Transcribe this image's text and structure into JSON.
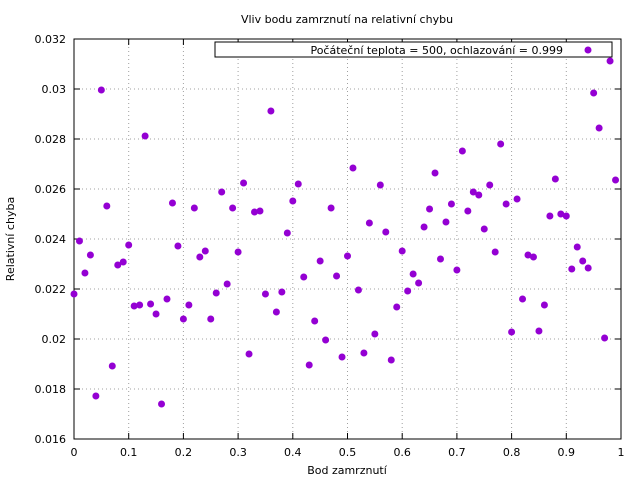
{
  "chart_data": {
    "type": "scatter",
    "title": "Vliv bodu zamrznutí na relativní chybu",
    "xlabel": "Bod zamrznutí",
    "ylabel": "Relativní chyba",
    "xlim": [
      0,
      1
    ],
    "ylim": [
      0.016,
      0.032
    ],
    "x_ticks": [
      "0",
      "0.1",
      "0.2",
      "0.3",
      "0.4",
      "0.5",
      "0.6",
      "0.7",
      "0.8",
      "0.9",
      "1"
    ],
    "y_ticks": [
      "0.016",
      "0.018",
      "0.02",
      "0.022",
      "0.024",
      "0.026",
      "0.028",
      "0.03",
      "0.032"
    ],
    "grid": true,
    "legend_position": "top-right",
    "marker_color": "#9400d3",
    "series": [
      {
        "name": "Počáteční teplota = 500, ochlazování = 0.999",
        "x": [
          0.0,
          0.01,
          0.02,
          0.03,
          0.04,
          0.05,
          0.06,
          0.07,
          0.08,
          0.09,
          0.1,
          0.11,
          0.12,
          0.13,
          0.14,
          0.15,
          0.16,
          0.17,
          0.18,
          0.19,
          0.2,
          0.21,
          0.22,
          0.23,
          0.24,
          0.25,
          0.26,
          0.27,
          0.28,
          0.29,
          0.3,
          0.31,
          0.32,
          0.33,
          0.34,
          0.35,
          0.36,
          0.37,
          0.38,
          0.39,
          0.4,
          0.41,
          0.42,
          0.43,
          0.44,
          0.45,
          0.46,
          0.47,
          0.48,
          0.49,
          0.5,
          0.51,
          0.52,
          0.53,
          0.54,
          0.55,
          0.56,
          0.57,
          0.58,
          0.59,
          0.6,
          0.61,
          0.62,
          0.63,
          0.64,
          0.65,
          0.66,
          0.67,
          0.68,
          0.69,
          0.7,
          0.71,
          0.72,
          0.73,
          0.74,
          0.75,
          0.76,
          0.77,
          0.78,
          0.79,
          0.8,
          0.81,
          0.82,
          0.83,
          0.84,
          0.85,
          0.86,
          0.87,
          0.88,
          0.89,
          0.9,
          0.91,
          0.92,
          0.93,
          0.94,
          0.95,
          0.96,
          0.97,
          0.98,
          0.99
        ],
        "y": [
          0.0218,
          0.02392,
          0.02264,
          0.02336,
          0.01772,
          0.02996,
          0.02532,
          0.01892,
          0.02296,
          0.02308,
          0.02376,
          0.02132,
          0.02136,
          0.02812,
          0.0214,
          0.021,
          0.0174,
          0.0216,
          0.02544,
          0.02372,
          0.0208,
          0.02136,
          0.02524,
          0.02328,
          0.02352,
          0.0208,
          0.02184,
          0.02588,
          0.0222,
          0.02524,
          0.02348,
          0.02624,
          0.0194,
          0.02508,
          0.02512,
          0.0218,
          0.02912,
          0.02108,
          0.02188,
          0.02424,
          0.02552,
          0.0262,
          0.02248,
          0.01896,
          0.02072,
          0.02312,
          0.01996,
          0.02524,
          0.02252,
          0.01928,
          0.02332,
          0.02684,
          0.02196,
          0.01944,
          0.02464,
          0.0202,
          0.02616,
          0.02428,
          0.01916,
          0.02128,
          0.02352,
          0.02192,
          0.0226,
          0.02224,
          0.02448,
          0.0252,
          0.02664,
          0.0232,
          0.02468,
          0.0254,
          0.02276,
          0.02752,
          0.02512,
          0.02588,
          0.02576,
          0.0244,
          0.02616,
          0.02348,
          0.0278,
          0.0254,
          0.02028,
          0.0256,
          0.0216,
          0.02336,
          0.02328,
          0.02032,
          0.02136,
          0.02492,
          0.0264,
          0.025,
          0.02492,
          0.0228,
          0.02368,
          0.02312,
          0.02284,
          0.02984,
          0.02844,
          0.02004,
          0.03112,
          0.02636
        ]
      }
    ]
  }
}
